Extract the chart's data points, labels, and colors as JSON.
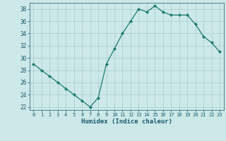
{
  "x": [
    0,
    1,
    2,
    3,
    4,
    5,
    6,
    7,
    8,
    9,
    10,
    11,
    12,
    13,
    14,
    15,
    16,
    17,
    18,
    19,
    20,
    21,
    22,
    23
  ],
  "y": [
    29,
    28,
    27,
    26,
    25,
    24,
    23,
    22,
    23.5,
    29,
    31.5,
    34,
    36,
    38,
    37.5,
    38.5,
    37.5,
    37,
    37,
    37,
    35.5,
    33.5,
    32.5,
    31
  ],
  "xlabel": "Humidex (Indice chaleur)",
  "ylim": [
    21.5,
    39
  ],
  "xlim": [
    -0.5,
    23.5
  ],
  "yticks": [
    22,
    24,
    26,
    28,
    30,
    32,
    34,
    36,
    38
  ],
  "xtick_labels": [
    "0",
    "1",
    "2",
    "3",
    "4",
    "5",
    "6",
    "7",
    "8",
    "9",
    "10",
    "11",
    "12",
    "13",
    "14",
    "15",
    "16",
    "17",
    "18",
    "19",
    "20",
    "21",
    "22",
    "23"
  ],
  "line_color": "#1a7a6e",
  "marker": "D",
  "marker_size": 2,
  "bg_color": "#cce8e8",
  "grid_color": "#aacccc",
  "label_color": "#1a5a6e",
  "tick_color": "#1a5a6e"
}
